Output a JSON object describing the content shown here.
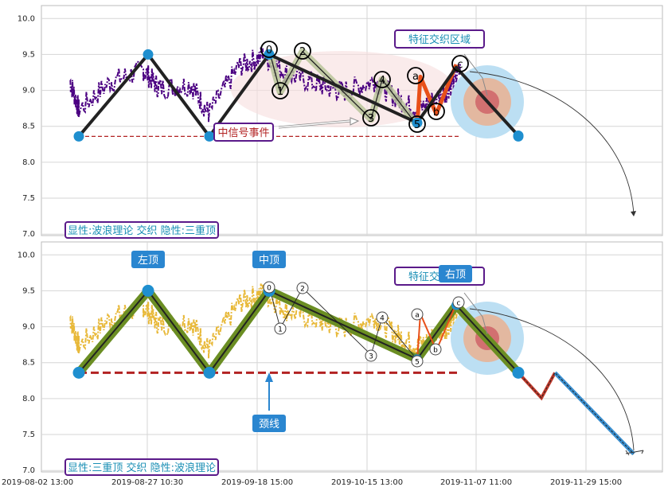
{
  "chart_data": [
    {
      "type": "line",
      "panel": "top",
      "ylim": [
        6.98,
        10.18
      ],
      "y_ticks": [
        "10.0",
        "9.5",
        "9.0",
        "8.5",
        "8.0",
        "7.5",
        "7.0"
      ],
      "price_color": "#4b0082",
      "wave_points": [
        {
          "x": 0,
          "y": 8.36
        },
        {
          "x": 1,
          "y": 9.5
        },
        {
          "x": 2,
          "y": 8.36
        },
        {
          "x": 3,
          "y": 9.5
        },
        {
          "x": 4,
          "y": 8.55
        },
        {
          "x": 5,
          "y": 9.32
        },
        {
          "x": 6,
          "y": 8.37
        }
      ],
      "neckline": 8.36,
      "sub_wave_labels": [
        "0",
        "1",
        "2",
        "3",
        "4",
        "5",
        "a",
        "b",
        "c"
      ],
      "sub_wave_values": [
        9.56,
        8.98,
        9.54,
        8.6,
        9.15,
        8.51,
        9.19,
        8.67,
        9.36
      ],
      "annotations": {
        "feature_zone": "特征交织区域",
        "mid_signal": "中信号事件",
        "caption": "显性:波浪理论 交织 隐性:三重顶"
      }
    },
    {
      "type": "line",
      "panel": "bottom",
      "ylim": [
        6.98,
        10.18
      ],
      "y_ticks": [
        "10.0",
        "9.5",
        "9.0",
        "8.5",
        "8.0",
        "7.5",
        "7.0"
      ],
      "price_color": "#e8b93a",
      "pattern_points": [
        {
          "x": 0,
          "y": 8.36
        },
        {
          "x": 1,
          "y": 9.5
        },
        {
          "x": 2,
          "y": 8.36
        },
        {
          "x": 3,
          "y": 9.5
        },
        {
          "x": 4,
          "y": 8.55
        },
        {
          "x": 5,
          "y": 9.3
        },
        {
          "x": 6,
          "y": 8.36
        }
      ],
      "projection": [
        {
          "x": 6,
          "y": 8.36
        },
        {
          "x": 6.3,
          "y": 8.01
        },
        {
          "x": 6.5,
          "y": 8.36
        },
        {
          "x": 7.3,
          "y": 7.23
        }
      ],
      "neckline": 8.36,
      "sub_wave_labels": [
        "0",
        "1",
        "2",
        "3",
        "4",
        "5",
        "a",
        "b",
        "c"
      ],
      "sub_wave_values": [
        9.56,
        8.98,
        9.54,
        8.61,
        9.13,
        8.54,
        9.18,
        8.67,
        9.32
      ],
      "annotations": {
        "left_top": "左顶",
        "mid_top": "中顶",
        "right_top": "右顶",
        "feature_zone": "特征交织区域",
        "neckline_label": "颈线",
        "caption": "显性:三重顶 交织 隐性:波浪理论"
      }
    }
  ],
  "x_ticks": [
    "2019-08-02 13:00",
    "2019-08-27 10:30",
    "2019-09-18 15:00",
    "2019-10-15 13:00",
    "2019-11-07 11:00",
    "2019-11-29 15:00"
  ],
  "colors": {
    "grid": "#cccccc",
    "wave_line": "#222222",
    "marker": "#1f8fcf",
    "neckline": "#b22222",
    "pattern_fill": "#6b8e23",
    "label_border": "#5a1a8a",
    "label_text": "#1a8fb5",
    "button_bg": "#2a86d0",
    "orange": "#e8501a"
  }
}
